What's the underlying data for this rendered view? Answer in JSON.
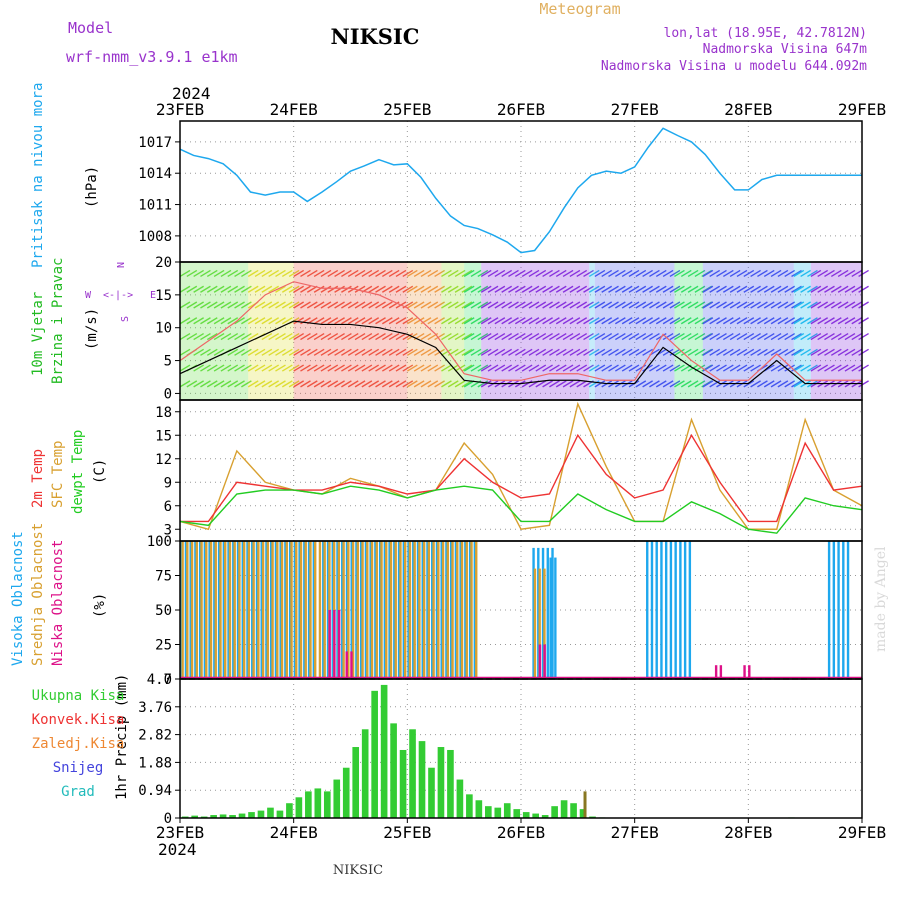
{
  "header": {
    "model_label": "Model",
    "model_name": "wrf-nmm_v3.9.1 e1km",
    "station": "NIKSIC",
    "meteogram_label": "Meteogram",
    "coords": "lon,lat (18.95E, 42.7812N)",
    "elevation": "Nadmorska Visina 647m",
    "model_elevation": "Nadmorska Visina u modelu 644.092m",
    "year_top": "2024",
    "year_bottom": "2024",
    "footer_station": "NIKSIC",
    "watermark": "made by Angel"
  },
  "colors": {
    "pressure": "#1ea8ee",
    "temp2m": "#ee3333",
    "sfc": "#d8a030",
    "dew": "#22cc22",
    "high_cloud": "#1ea8ee",
    "mid_cloud": "#d8a030",
    "low_cloud": "#dd1188",
    "total_precip": "#33cc33",
    "conv_precip": "#ee3333",
    "frozen_precip": "#ee8833",
    "snow": "#4444dd",
    "hail": "#22bbbb",
    "wind_title": "#22bb22",
    "wind_compass": "#9933cc"
  },
  "chart_data": [
    {
      "type": "line",
      "panel": "pressure",
      "ylabel_colored": "Pritisak na nivou mora",
      "unit": "(hPa)",
      "x_dates": [
        "23FEB",
        "24FEB",
        "25FEB",
        "26FEB",
        "27FEB",
        "28FEB",
        "29FEB"
      ],
      "ylim": [
        1005.5,
        1019
      ],
      "yticks": [
        1008,
        1011,
        1014,
        1017
      ],
      "grid": true,
      "series": [
        {
          "key": "pressure",
          "x": [
            0,
            0.12,
            0.25,
            0.38,
            0.5,
            0.62,
            0.75,
            0.88,
            1,
            1.12,
            1.25,
            1.38,
            1.5,
            1.62,
            1.75,
            1.88,
            2,
            2.12,
            2.25,
            2.38,
            2.5,
            2.62,
            2.75,
            2.88,
            3,
            3.12,
            3.25,
            3.38,
            3.5,
            3.62,
            3.75,
            3.88,
            4,
            4.12,
            4.25,
            4.38,
            4.5,
            4.62,
            4.75,
            4.88,
            5,
            5.12,
            5.25,
            5.38,
            5.5,
            5.62,
            5.75,
            5.88,
            6
          ],
          "y": [
            1016.3,
            1015.7,
            1015.4,
            1014.9,
            1013.8,
            1012.2,
            1011.9,
            1012.2,
            1012.2,
            1011.3,
            1012.2,
            1013.2,
            1014.2,
            1014.7,
            1015.3,
            1014.8,
            1014.9,
            1013.6,
            1011.6,
            1009.9,
            1009.0,
            1008.7,
            1008.1,
            1007.4,
            1006.4,
            1006.6,
            1008.4,
            1010.7,
            1012.6,
            1013.8,
            1014.2,
            1014.0,
            1014.6,
            1016.5,
            1018.3,
            1017.6,
            1017.0,
            1015.8,
            1014.0,
            1012.4,
            1012.4,
            1013.4,
            1013.8,
            1013.8,
            1013.8,
            1013.8,
            1013.8,
            1013.8,
            1013.8
          ]
        }
      ]
    },
    {
      "type": "line",
      "panel": "wind",
      "ylabel_colored_1": "10m Vjetar",
      "ylabel_colored_2": "Brzina i Pravac",
      "unit": "(m/s)",
      "compass": {
        "north": "N",
        "south": "S",
        "west": "W",
        "east": "E"
      },
      "ylim": [
        -1,
        20
      ],
      "yticks": [
        0,
        5,
        10,
        15,
        20
      ],
      "grid": true,
      "series": [
        {
          "key": "speed",
          "name": "",
          "x": [
            0,
            0.25,
            0.5,
            0.75,
            1,
            1.25,
            1.5,
            1.75,
            2,
            2.25,
            2.5,
            2.75,
            3,
            3.25,
            3.5,
            3.75,
            4,
            4.25,
            4.5,
            4.75,
            5,
            5.25,
            5.5,
            5.75,
            6
          ],
          "y": [
            3,
            5,
            7,
            9,
            11,
            10.5,
            10.5,
            10,
            9,
            7,
            2,
            1.5,
            1.5,
            2,
            2,
            1.5,
            1.5,
            7,
            4,
            1.5,
            1.5,
            5,
            1.5,
            1.5,
            1.5
          ]
        },
        {
          "key": "gust",
          "name": "",
          "x": [
            0,
            0.25,
            0.5,
            0.75,
            1,
            1.25,
            1.5,
            1.75,
            2,
            2.25,
            2.5,
            2.75,
            3,
            3.25,
            3.5,
            3.75,
            4,
            4.25,
            4.5,
            4.75,
            5,
            5.25,
            5.5,
            5.75,
            6
          ],
          "y": [
            5,
            8,
            11,
            15,
            17,
            16,
            16,
            15,
            13,
            9,
            3,
            2,
            2,
            3,
            3,
            2,
            2,
            9,
            5,
            2,
            2,
            6,
            2,
            2,
            2
          ]
        }
      ]
    },
    {
      "type": "line",
      "panel": "temperature",
      "ylabel_colored_1": "2m Temp",
      "ylabel_colored_2": "SFC Temp",
      "ylabel_colored_3": "dewpt Temp",
      "unit": "(C)",
      "ylim": [
        1.5,
        19.5
      ],
      "yticks": [
        3,
        6,
        9,
        12,
        15,
        18
      ],
      "grid": true,
      "series": [
        {
          "key": "temp2m",
          "x": [
            0,
            0.25,
            0.5,
            0.75,
            1,
            1.25,
            1.5,
            1.75,
            2,
            2.25,
            2.5,
            2.75,
            3,
            3.25,
            3.5,
            3.75,
            4,
            4.25,
            4.5,
            4.75,
            5,
            5.25,
            5.5,
            5.75,
            6
          ],
          "y": [
            4,
            4,
            9,
            8.5,
            8,
            8,
            9,
            8.5,
            7.5,
            8,
            12,
            9,
            7,
            7.5,
            15,
            10,
            7,
            8,
            15,
            9,
            4,
            4,
            14,
            8,
            8.5
          ]
        },
        {
          "key": "sfc",
          "x": [
            0,
            0.25,
            0.5,
            0.75,
            1,
            1.25,
            1.5,
            1.75,
            2,
            2.25,
            2.5,
            2.75,
            3,
            3.25,
            3.5,
            3.75,
            4,
            4.25,
            4.5,
            4.75,
            5,
            5.25,
            5.5,
            5.75,
            6
          ],
          "y": [
            4,
            3,
            13,
            9,
            8,
            7.5,
            9.5,
            8.5,
            7,
            8,
            14,
            10,
            3,
            3.5,
            19,
            11,
            4,
            4,
            17,
            8,
            3,
            3,
            17,
            8,
            6
          ]
        },
        {
          "key": "dew",
          "x": [
            0,
            0.25,
            0.5,
            0.75,
            1,
            1.25,
            1.5,
            1.75,
            2,
            2.25,
            2.5,
            2.75,
            3,
            3.25,
            3.5,
            3.75,
            4,
            4.25,
            4.5,
            4.75,
            5,
            5.25,
            5.5,
            5.75,
            6
          ],
          "y": [
            4,
            3.5,
            7.5,
            8,
            8,
            7.5,
            8.5,
            8,
            7,
            8,
            8.5,
            8,
            4,
            4,
            7.5,
            5.5,
            4,
            4,
            6.5,
            5,
            3,
            2.5,
            7,
            6,
            5.5
          ]
        }
      ]
    },
    {
      "type": "bar",
      "panel": "clouds",
      "ylabel_colored_1": "Visoka Oblacnost",
      "ylabel_colored_2": "Srednja Oblacnost",
      "ylabel_colored_3": "Niska Oblacnost",
      "unit": "(%)",
      "ylim": [
        0,
        100
      ],
      "yticks": [
        0,
        25,
        50,
        75,
        100
      ],
      "grid": true,
      "high_cloud_segments": [
        [
          0,
          1.2,
          100
        ],
        [
          1.25,
          2.6,
          100
        ],
        [
          3.1,
          3.3,
          95
        ],
        [
          3.25,
          3.3,
          88
        ],
        [
          4.1,
          4.5,
          100
        ],
        [
          5.7,
          5.9,
          100
        ],
        [
          6.0,
          6.0,
          0
        ]
      ],
      "mid_cloud_segments": [
        [
          0,
          2.6,
          100
        ],
        [
          3.1,
          3.2,
          80
        ]
      ],
      "low_cloud_segments": [
        [
          1.3,
          1.4,
          50
        ],
        [
          1.45,
          1.5,
          20
        ],
        [
          3.15,
          3.2,
          25
        ],
        [
          4.7,
          4.75,
          10
        ],
        [
          4.95,
          5.0,
          10
        ]
      ]
    },
    {
      "type": "bar",
      "panel": "precip",
      "legend": [
        "Ukupna Kisa",
        "Konvek.Kisa",
        "Zaledj.Kisa",
        "Snijeg",
        "Grad"
      ],
      "legend_keys": [
        "total_precip",
        "conv_precip",
        "frozen_precip",
        "snow",
        "hail"
      ],
      "ylabel": "1hr Precip (mm)",
      "ylim": [
        0,
        4.7
      ],
      "yticks": [
        0,
        0.94,
        1.88,
        2.82,
        3.76,
        4.7
      ],
      "grid": true,
      "total": [
        0.05,
        0.08,
        0.05,
        0.1,
        0.12,
        0.1,
        0.15,
        0.2,
        0.25,
        0.35,
        0.25,
        0.5,
        0.7,
        0.9,
        1.0,
        0.9,
        1.3,
        1.7,
        2.4,
        3.0,
        4.3,
        4.5,
        3.2,
        2.3,
        3.0,
        2.6,
        1.7,
        2.4,
        2.3,
        1.3,
        0.8,
        0.6,
        0.4,
        0.35,
        0.5,
        0.3,
        0.2,
        0.15,
        0.1,
        0.4,
        0.6,
        0.5,
        0.3,
        0.05,
        0.02,
        0.0,
        0.0,
        0.0,
        0.0,
        0.0,
        0.0,
        0.0,
        0.0,
        0.0,
        0.0,
        0.0,
        0.0,
        0.0,
        0.0,
        0.0,
        0.0,
        0.0,
        0.0,
        0.0,
        0.02,
        0.0,
        0.0,
        0.0,
        0.0,
        0.0,
        0.0,
        0.0
      ],
      "conv_spike_x": 3.55,
      "conv_spike_y": 0.9
    }
  ]
}
